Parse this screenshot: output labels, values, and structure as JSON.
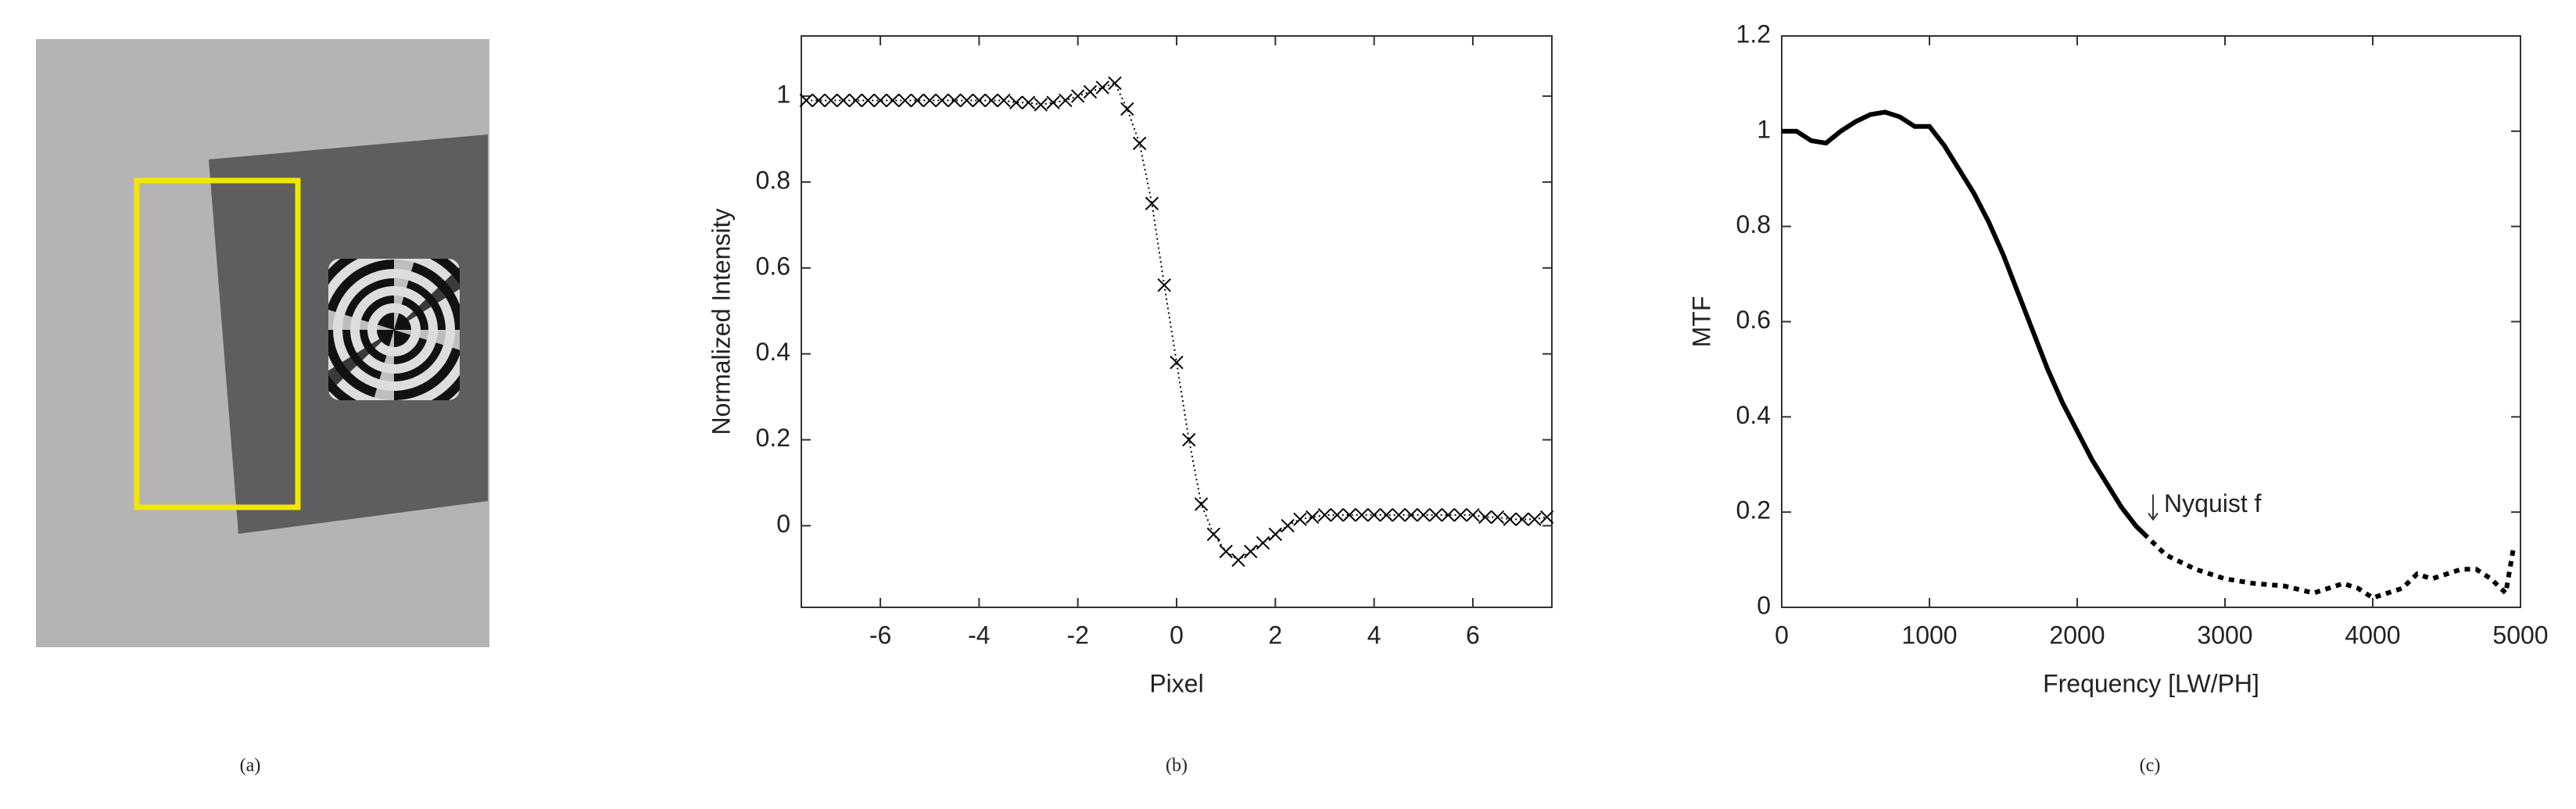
{
  "image_panel": {
    "caption": "(a)"
  },
  "chart_data": [
    {
      "type": "line",
      "caption": "(b)",
      "xlabel": "Pixel",
      "ylabel": "Normalized Intensity",
      "xlim": [
        -7.6,
        7.6
      ],
      "ylim": [
        -0.19,
        1.14
      ],
      "xticks": [
        -6,
        -4,
        -2,
        0,
        2,
        4,
        6
      ],
      "yticks": [
        0,
        0.2,
        0.4,
        0.6,
        0.8,
        1
      ],
      "x": [
        -7.5,
        -7.25,
        -7,
        -6.75,
        -6.5,
        -6.25,
        -6,
        -5.75,
        -5.5,
        -5.25,
        -5,
        -4.75,
        -4.5,
        -4.25,
        -4,
        -3.75,
        -3.5,
        -3.25,
        -3,
        -2.75,
        -2.5,
        -2.25,
        -2,
        -1.75,
        -1.5,
        -1.25,
        -1,
        -0.75,
        -0.5,
        -0.25,
        0,
        0.25,
        0.5,
        0.75,
        1,
        1.25,
        1.5,
        1.75,
        2,
        2.25,
        2.5,
        2.75,
        3,
        3.25,
        3.5,
        3.75,
        4,
        4.25,
        4.5,
        4.75,
        5,
        5.25,
        5.5,
        5.75,
        6,
        6.25,
        6.5,
        6.75,
        7,
        7.25,
        7.5
      ],
      "series": [
        {
          "color": "#000000",
          "style": "dotted",
          "marker": "x",
          "values": [
            0.99,
            0.99,
            0.99,
            0.99,
            0.99,
            0.99,
            0.99,
            0.99,
            0.99,
            0.99,
            0.99,
            0.99,
            0.99,
            0.99,
            0.99,
            0.99,
            0.99,
            0.985,
            0.985,
            0.98,
            0.985,
            0.99,
            1.0,
            1.01,
            1.02,
            1.03,
            0.97,
            0.89,
            0.75,
            0.56,
            0.38,
            0.2,
            0.05,
            -0.02,
            -0.06,
            -0.08,
            -0.06,
            -0.04,
            -0.02,
            0.0,
            0.015,
            0.02,
            0.025,
            0.025,
            0.025,
            0.025,
            0.025,
            0.025,
            0.025,
            0.025,
            0.025,
            0.025,
            0.025,
            0.025,
            0.025,
            0.02,
            0.02,
            0.015,
            0.015,
            0.015,
            0.02
          ]
        }
      ]
    },
    {
      "type": "line",
      "caption": "(c)",
      "xlabel": "Frequency [LW/PH]",
      "ylabel": "MTF",
      "annotation": "Nyquist f",
      "xlim": [
        0,
        5000
      ],
      "ylim": [
        0,
        1.2
      ],
      "xticks": [
        0,
        1000,
        2000,
        3000,
        4000,
        5000
      ],
      "yticks": [
        0,
        0.2,
        0.4,
        0.6,
        0.8,
        1,
        1.2
      ],
      "series": [
        {
          "color": "#000000",
          "style": "solid",
          "x": [
            0,
            100,
            200,
            300,
            400,
            500,
            600,
            700,
            800,
            900,
            1000,
            1100,
            1200,
            1300,
            1400,
            1500,
            1600,
            1700,
            1800,
            1900,
            2000,
            2100,
            2200,
            2300,
            2400,
            2450
          ],
          "values": [
            1.0,
            1.0,
            0.98,
            0.975,
            1.0,
            1.02,
            1.035,
            1.04,
            1.03,
            1.01,
            1.01,
            0.97,
            0.92,
            0.87,
            0.81,
            0.74,
            0.66,
            0.58,
            0.5,
            0.43,
            0.37,
            0.31,
            0.26,
            0.21,
            0.17,
            0.155
          ]
        },
        {
          "color": "#000000",
          "style": "dotted",
          "x": [
            2450,
            2600,
            2800,
            3000,
            3200,
            3400,
            3600,
            3800,
            3900,
            4000,
            4100,
            4200,
            4300,
            4400,
            4500,
            4600,
            4700,
            4800,
            4900,
            4950
          ],
          "values": [
            0.155,
            0.11,
            0.08,
            0.06,
            0.05,
            0.045,
            0.03,
            0.05,
            0.04,
            0.02,
            0.03,
            0.04,
            0.07,
            0.06,
            0.07,
            0.08,
            0.08,
            0.06,
            0.03,
            0.12
          ]
        }
      ]
    }
  ]
}
